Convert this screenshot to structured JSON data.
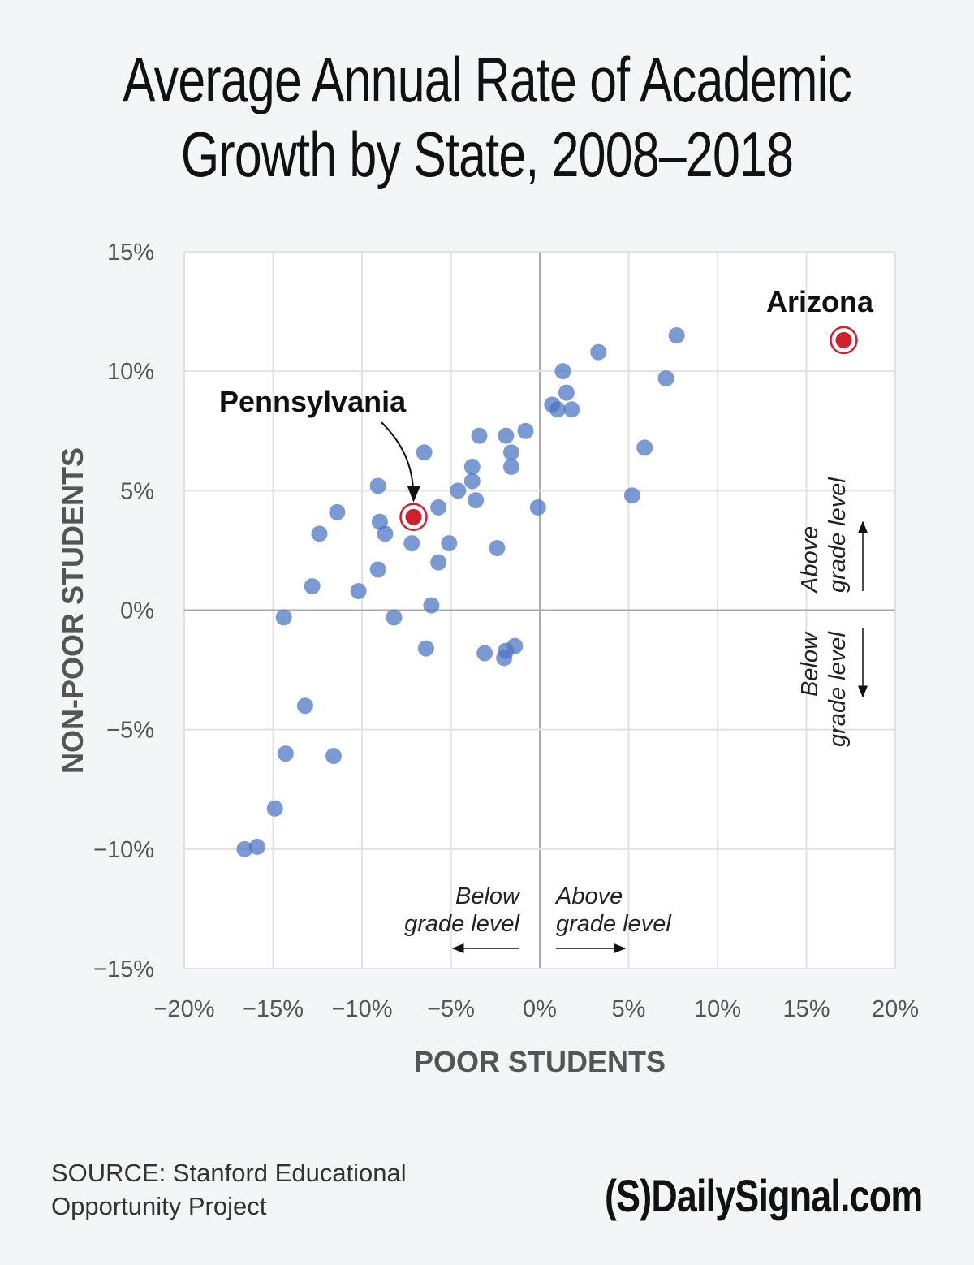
{
  "chart_data": {
    "type": "scatter",
    "title": "Average Annual Rate of Academic Growth by State, 2008–2018",
    "xlabel": "POOR STUDENTS",
    "ylabel": "NON-POOR STUDENTS",
    "xlim": [
      -20,
      20
    ],
    "ylim": [
      -15,
      15
    ],
    "x_ticks": [
      -20,
      -15,
      -10,
      -5,
      0,
      5,
      10,
      15,
      20
    ],
    "y_ticks": [
      -15,
      -10,
      -5,
      0,
      5,
      10,
      15
    ],
    "x_tick_labels": [
      "−20%",
      "−15%",
      "−10%",
      "−5%",
      "0%",
      "5%",
      "10%",
      "15%",
      "20%"
    ],
    "y_tick_labels": [
      "−15%",
      "−10%",
      "−5%",
      "0%",
      "5%",
      "10%",
      "15%"
    ],
    "grid": true,
    "colors": {
      "points": "#4f77c4",
      "highlight": "#d0202e"
    },
    "points": [
      [
        7.7,
        11.5
      ],
      [
        3.3,
        10.8
      ],
      [
        1.3,
        10.0
      ],
      [
        7.1,
        9.7
      ],
      [
        1.5,
        9.1
      ],
      [
        0.7,
        8.6
      ],
      [
        1.0,
        8.4
      ],
      [
        1.8,
        8.4
      ],
      [
        -0.8,
        7.5
      ],
      [
        -3.4,
        7.3
      ],
      [
        -1.9,
        7.3
      ],
      [
        -6.5,
        6.6
      ],
      [
        -1.6,
        6.6
      ],
      [
        5.9,
        6.8
      ],
      [
        -3.8,
        6.0
      ],
      [
        -1.6,
        6.0
      ],
      [
        -3.8,
        5.4
      ],
      [
        -4.6,
        5.0
      ],
      [
        -9.1,
        5.2
      ],
      [
        -3.6,
        4.6
      ],
      [
        5.2,
        4.8
      ],
      [
        -5.7,
        4.3
      ],
      [
        -0.1,
        4.3
      ],
      [
        -11.4,
        4.1
      ],
      [
        -9.0,
        3.7
      ],
      [
        -12.4,
        3.2
      ],
      [
        -8.7,
        3.2
      ],
      [
        -7.2,
        2.8
      ],
      [
        -5.1,
        2.8
      ],
      [
        -2.4,
        2.6
      ],
      [
        -5.7,
        2.0
      ],
      [
        -9.1,
        1.7
      ],
      [
        -12.8,
        1.0
      ],
      [
        -10.2,
        0.8
      ],
      [
        -6.1,
        0.2
      ],
      [
        -14.4,
        -0.3
      ],
      [
        -8.2,
        -0.3
      ],
      [
        -6.4,
        -1.6
      ],
      [
        -3.1,
        -1.8
      ],
      [
        -1.4,
        -1.5
      ],
      [
        -1.9,
        -1.7
      ],
      [
        -2.0,
        -2.0
      ],
      [
        -13.2,
        -4.0
      ],
      [
        -14.3,
        -6.0
      ],
      [
        -11.6,
        -6.1
      ],
      [
        -14.9,
        -8.3
      ],
      [
        -16.6,
        -10.0
      ],
      [
        -15.9,
        -9.9
      ]
    ],
    "highlights": [
      {
        "label": "Pennsylvania",
        "x": -7.1,
        "y": 3.9
      },
      {
        "label": "Arizona",
        "x": 17.1,
        "y": 11.3
      }
    ],
    "annotations": {
      "x_below": [
        "Below",
        "grade level"
      ],
      "x_above": [
        "Above",
        "grade level"
      ],
      "y_above": [
        "Above",
        "grade level"
      ],
      "y_below": [
        "Below",
        "grade level"
      ]
    }
  },
  "footer": {
    "source_line1": "SOURCE: Stanford Educational",
    "source_line2": "Opportunity Project",
    "logo": "(S)DailySignal.com"
  }
}
